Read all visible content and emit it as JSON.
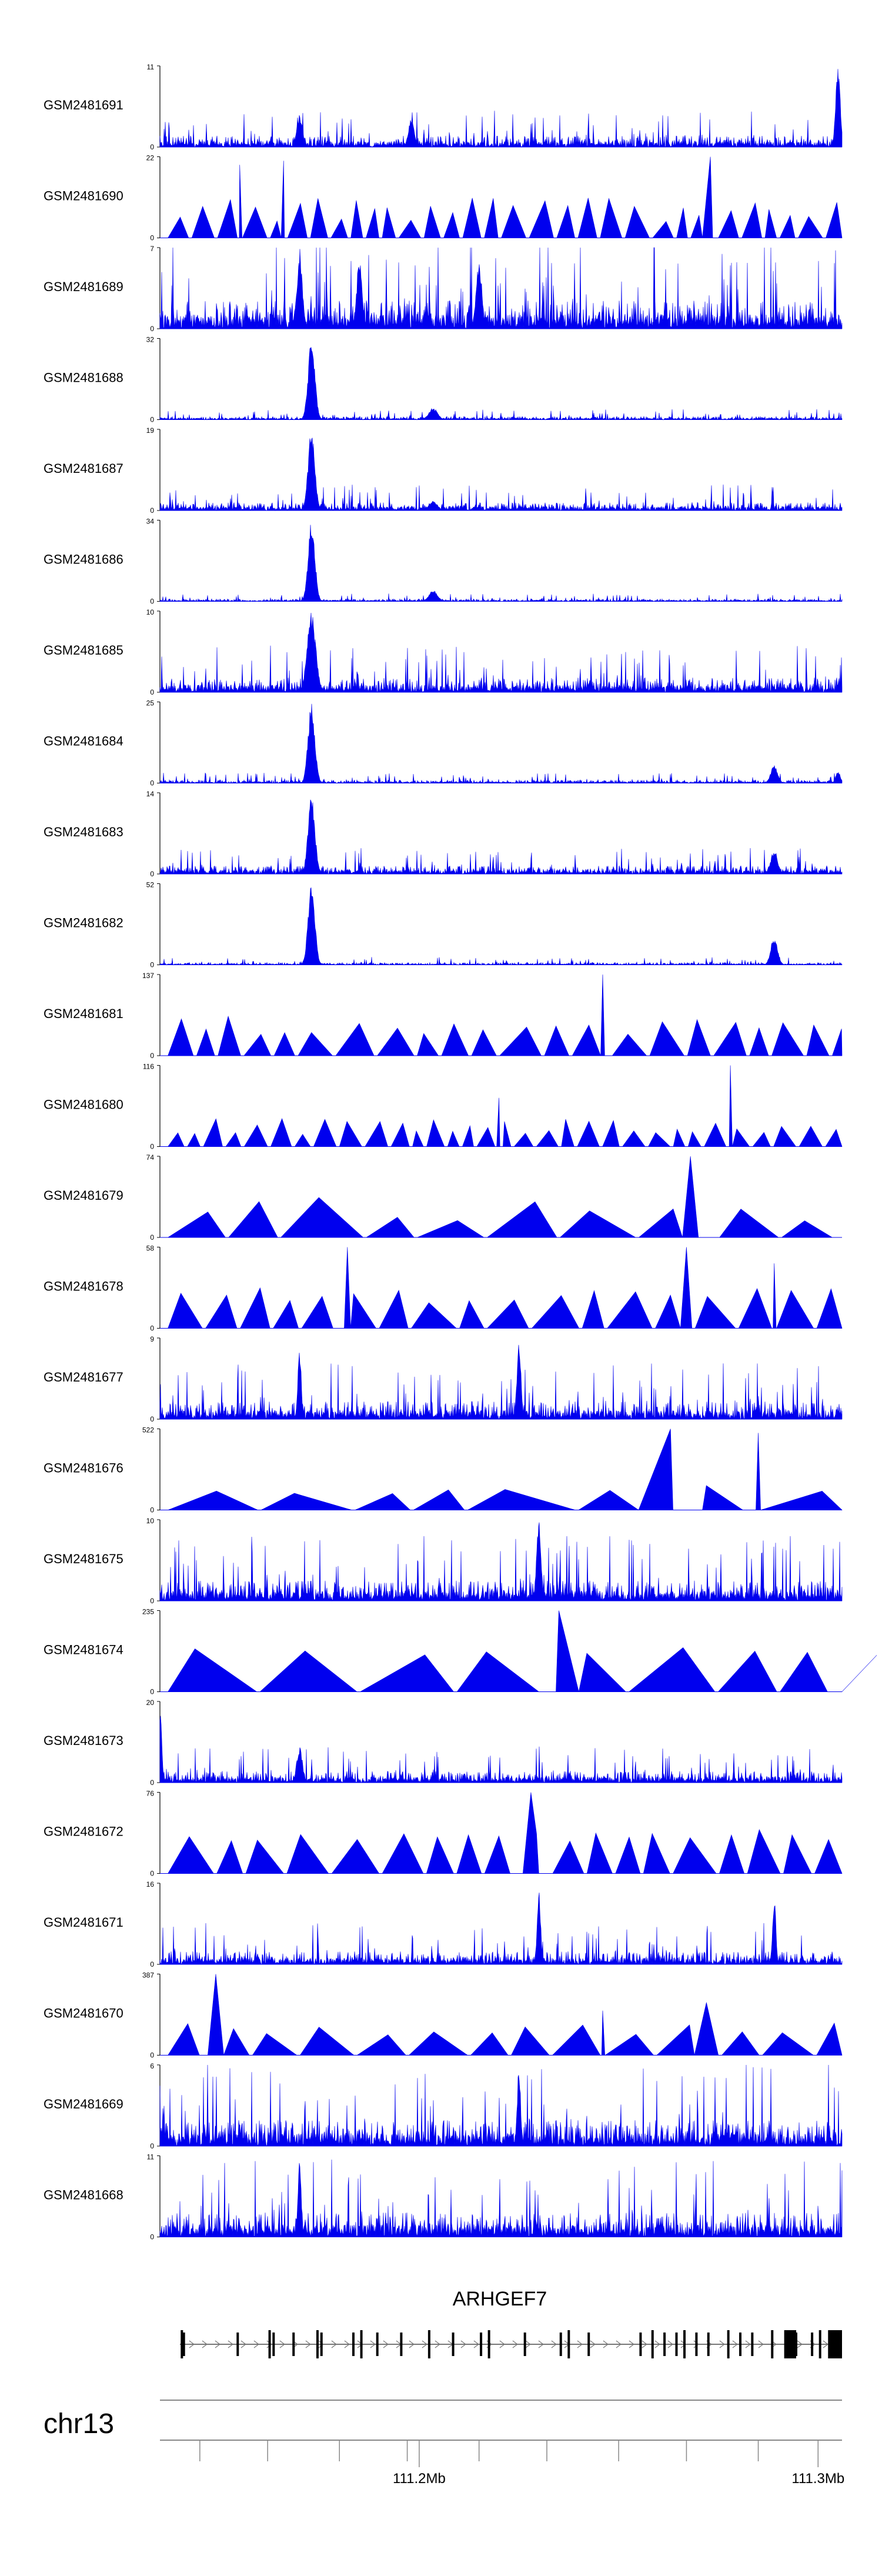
{
  "chart_data": {
    "type": "area",
    "title": "",
    "colors": {
      "signal": "#0000ee",
      "axis": "#000000",
      "gene": "#000000",
      "intron": "#777777",
      "scale": "#888888"
    },
    "chromosome": "chr13",
    "x_range_mb": [
      111.135,
      111.306
    ],
    "ticks_mb": [
      111.145,
      111.162,
      111.18,
      111.197,
      111.2,
      111.215,
      111.232,
      111.25,
      111.267,
      111.285,
      111.3
    ],
    "tick_labels": [
      {
        "pos_mb": 111.2,
        "label": "111.2Mb"
      },
      {
        "pos_mb": 111.3,
        "label": "111.3Mb"
      }
    ],
    "gene": {
      "name": "ARHGEF7",
      "start_mb": 111.14,
      "end_mb": 111.306,
      "exons_mb": [
        111.1405,
        111.141,
        111.1545,
        111.1625,
        111.1635,
        111.1685,
        111.1745,
        111.1755,
        111.1835,
        111.1855,
        111.1895,
        111.1955,
        111.2025,
        111.2085,
        111.2155,
        111.2175,
        111.2265,
        111.2355,
        111.2375,
        111.2425,
        111.2555,
        111.2585,
        111.2615,
        111.2645,
        111.2665,
        111.2695,
        111.2725,
        111.2775,
        111.2805,
        111.2835,
        111.2885,
        111.2945,
        111.2985,
        111.3005
      ],
      "big_exons_mb": [
        [
          111.2915,
          111.2945
        ],
        [
          111.3025,
          111.306
        ]
      ]
    },
    "tracks": [
      {
        "name": "GSM2481691",
        "ymax": 11,
        "style": "dense",
        "base": 0.14,
        "peaks": [
          [
            111.17,
            0.4,
            0.001
          ],
          [
            111.198,
            0.35,
            0.001
          ],
          [
            111.305,
            1.0,
            0.0008
          ]
        ]
      },
      {
        "name": "GSM2481690",
        "ymax": 22,
        "style": "sparse",
        "gap": 0.0045,
        "hrange": [
          0.15,
          0.55
        ],
        "peaks": [
          [
            111.273,
            1.0,
            0.002
          ],
          [
            111.155,
            0.9,
            0.0006
          ],
          [
            111.166,
            0.95,
            0.0006
          ]
        ]
      },
      {
        "name": "GSM2481689",
        "ymax": 7,
        "style": "dense",
        "base": 0.35,
        "peaks": [
          [
            111.17,
            0.9,
            0.001
          ],
          [
            111.185,
            0.85,
            0.001
          ],
          [
            111.215,
            0.85,
            0.001
          ]
        ]
      },
      {
        "name": "GSM2481688",
        "ymax": 32,
        "style": "dense",
        "base": 0.04,
        "peaks": [
          [
            111.173,
            1.0,
            0.0012
          ],
          [
            111.2035,
            0.15,
            0.0015
          ]
        ]
      },
      {
        "name": "GSM2481687",
        "ymax": 19,
        "style": "dense",
        "base": 0.1,
        "peaks": [
          [
            111.173,
            1.0,
            0.0012
          ],
          [
            111.2035,
            0.12,
            0.0015
          ]
        ]
      },
      {
        "name": "GSM2481686",
        "ymax": 34,
        "style": "dense",
        "base": 0.03,
        "peaks": [
          [
            111.173,
            1.0,
            0.0012
          ],
          [
            111.2035,
            0.14,
            0.0015
          ]
        ]
      },
      {
        "name": "GSM2481685",
        "ymax": 10,
        "style": "dense",
        "base": 0.18,
        "peaks": [
          [
            111.173,
            1.0,
            0.0015
          ]
        ]
      },
      {
        "name": "GSM2481684",
        "ymax": 25,
        "style": "dense",
        "base": 0.04,
        "peaks": [
          [
            111.173,
            1.0,
            0.0012
          ],
          [
            111.289,
            0.22,
            0.0012
          ],
          [
            111.305,
            0.15,
            0.0008
          ]
        ]
      },
      {
        "name": "GSM2481683",
        "ymax": 14,
        "style": "dense",
        "base": 0.1,
        "peaks": [
          [
            111.173,
            1.0,
            0.0012
          ],
          [
            111.289,
            0.3,
            0.0012
          ]
        ]
      },
      {
        "name": "GSM2481682",
        "ymax": 52,
        "style": "dense",
        "base": 0.03,
        "peaks": [
          [
            111.173,
            1.0,
            0.0012
          ],
          [
            111.289,
            0.35,
            0.0012
          ]
        ]
      },
      {
        "name": "GSM2481681",
        "ymax": 137,
        "style": "sparse",
        "gap": 0.0075,
        "hrange": [
          0.25,
          0.5
        ],
        "peaks": [
          [
            111.246,
            1.0,
            0.0005
          ]
        ]
      },
      {
        "name": "GSM2481680",
        "ymax": 116,
        "style": "sparse",
        "gap": 0.0045,
        "hrange": [
          0.15,
          0.35
        ],
        "peaks": [
          [
            111.22,
            0.6,
            0.001
          ],
          [
            111.278,
            1.0,
            0.0005
          ]
        ]
      },
      {
        "name": "GSM2481679",
        "ymax": 74,
        "style": "sparse",
        "gap": 0.015,
        "hrange": [
          0.2,
          0.5
        ],
        "peaks": [
          [
            111.268,
            1.0,
            0.002
          ]
        ]
      },
      {
        "name": "GSM2481678",
        "ymax": 58,
        "style": "sparse",
        "gap": 0.0085,
        "hrange": [
          0.3,
          0.5
        ],
        "peaks": [
          [
            111.182,
            1.0,
            0.0008
          ],
          [
            111.267,
            1.0,
            0.0015
          ],
          [
            111.289,
            0.8,
            0.0006
          ]
        ]
      },
      {
        "name": "GSM2481677",
        "ymax": 9,
        "style": "dense",
        "base": 0.22,
        "peaks": [
          [
            111.225,
            1.0,
            0.0007
          ],
          [
            111.17,
            0.9,
            0.0006
          ]
        ]
      },
      {
        "name": "GSM2481676",
        "ymax": 522,
        "style": "sparse",
        "gap": 0.02,
        "hrange": [
          0.2,
          0.35
        ],
        "peaks": [
          [
            111.263,
            1.0,
            0.008
          ],
          [
            111.285,
            0.95,
            0.0006
          ]
        ]
      },
      {
        "name": "GSM2481675",
        "ymax": 10,
        "style": "dense",
        "base": 0.25,
        "peaks": [
          [
            111.23,
            1.0,
            0.0008
          ]
        ]
      },
      {
        "name": "GSM2481674",
        "ymax": 235,
        "style": "sparse",
        "gap": 0.018,
        "hrange": [
          0.45,
          0.55
        ],
        "peaks": [
          [
            111.235,
            1.0,
            0.005
          ]
        ]
      },
      {
        "name": "GSM2481673",
        "ymax": 20,
        "style": "dense",
        "base": 0.14,
        "peaks": [
          [
            111.135,
            1.0,
            0.0006
          ],
          [
            111.17,
            0.45,
            0.001
          ]
        ]
      },
      {
        "name": "GSM2481672",
        "ymax": 76,
        "style": "sparse",
        "gap": 0.0085,
        "hrange": [
          0.4,
          0.55
        ],
        "peaks": [
          [
            111.228,
            1.0,
            0.002
          ]
        ]
      },
      {
        "name": "GSM2481671",
        "ymax": 16,
        "style": "dense",
        "base": 0.16,
        "peaks": [
          [
            111.23,
            1.0,
            0.0006
          ],
          [
            111.289,
            0.85,
            0.0006
          ]
        ]
      },
      {
        "name": "GSM2481670",
        "ymax": 387,
        "style": "sparse",
        "gap": 0.012,
        "hrange": [
          0.25,
          0.4
        ],
        "peaks": [
          [
            111.149,
            1.0,
            0.002
          ],
          [
            111.272,
            0.65,
            0.003
          ],
          [
            111.246,
            0.55,
            0.0006
          ]
        ]
      },
      {
        "name": "GSM2481669",
        "ymax": 6,
        "style": "dense",
        "base": 0.32,
        "peaks": [
          [
            111.225,
            1.0,
            0.0006
          ]
        ]
      },
      {
        "name": "GSM2481668",
        "ymax": 11,
        "style": "dense",
        "base": 0.3,
        "peaks": [
          [
            111.17,
            0.95,
            0.0006
          ]
        ]
      }
    ]
  }
}
